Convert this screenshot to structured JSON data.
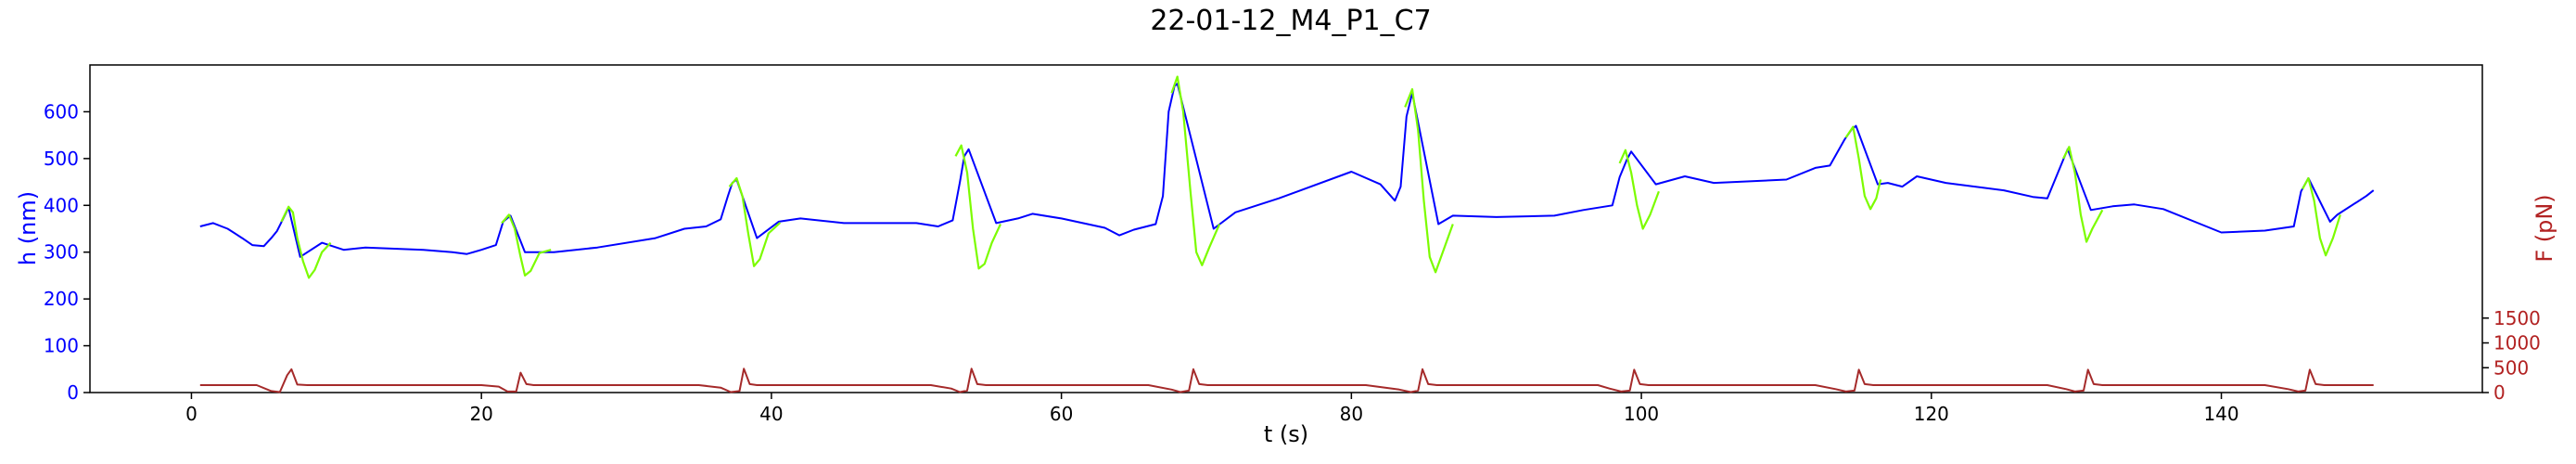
{
  "chart_data": {
    "type": "line",
    "title": "22-01-12_M4_P1_C7",
    "xlabel": "t (s)",
    "ylabel_left": "h (nm)",
    "ylabel_right": "F (pN)",
    "xlim": [
      -7,
      158
    ],
    "ylim_left": [
      0,
      700
    ],
    "ylim_right": [
      0,
      6600
    ],
    "x_ticks": [
      0,
      20,
      40,
      60,
      80,
      100,
      120,
      140
    ],
    "y_ticks_left": [
      0,
      100,
      200,
      300,
      400,
      500,
      600
    ],
    "y_ticks_right": [
      0,
      500,
      1000,
      1500
    ],
    "grid": false,
    "colors": {
      "left_axis": "#0000ff",
      "right_axis": "#b22222",
      "height_series": "#0000ff",
      "indentation_segments": "#7cfc00",
      "force_series": "#a52a2a"
    },
    "series": [
      {
        "axis": "left",
        "color": "#0000ff",
        "points": [
          [
            0.6,
            355
          ],
          [
            1.5,
            362
          ],
          [
            2.5,
            350
          ],
          [
            3.5,
            330
          ],
          [
            4.2,
            315
          ],
          [
            5.0,
            313
          ],
          [
            5.5,
            330
          ],
          [
            5.9,
            345
          ],
          [
            6.3,
            370
          ],
          [
            6.7,
            395
          ],
          [
            7.5,
            290
          ],
          [
            9.0,
            320
          ],
          [
            10.5,
            305
          ],
          [
            12,
            310
          ],
          [
            16,
            305
          ],
          [
            18,
            300
          ],
          [
            19,
            296
          ],
          [
            20,
            305
          ],
          [
            21,
            315
          ],
          [
            21.5,
            365
          ],
          [
            22,
            378
          ],
          [
            23,
            300
          ],
          [
            25,
            300
          ],
          [
            28,
            310
          ],
          [
            32,
            330
          ],
          [
            34,
            350
          ],
          [
            35.5,
            355
          ],
          [
            36.5,
            370
          ],
          [
            37,
            420
          ],
          [
            37.3,
            448
          ],
          [
            37.6,
            455
          ],
          [
            39,
            330
          ],
          [
            40.5,
            365
          ],
          [
            42,
            372
          ],
          [
            45,
            362
          ],
          [
            50,
            362
          ],
          [
            51.5,
            355
          ],
          [
            52.5,
            368
          ],
          [
            53,
            450
          ],
          [
            53.3,
            505
          ],
          [
            53.6,
            520
          ],
          [
            55.5,
            362
          ],
          [
            57,
            372
          ],
          [
            58,
            382
          ],
          [
            60,
            372
          ],
          [
            63,
            352
          ],
          [
            64,
            336
          ],
          [
            65,
            348
          ],
          [
            66.5,
            360
          ],
          [
            67,
            420
          ],
          [
            67.4,
            600
          ],
          [
            67.8,
            655
          ],
          [
            68,
            660
          ],
          [
            70.5,
            350
          ],
          [
            72,
            385
          ],
          [
            75,
            415
          ],
          [
            80,
            472
          ],
          [
            82,
            445
          ],
          [
            83,
            410
          ],
          [
            83.4,
            440
          ],
          [
            83.8,
            590
          ],
          [
            84.2,
            640
          ],
          [
            86,
            360
          ],
          [
            87,
            378
          ],
          [
            90,
            375
          ],
          [
            94,
            378
          ],
          [
            96,
            390
          ],
          [
            98,
            400
          ],
          [
            98.5,
            460
          ],
          [
            99,
            498
          ],
          [
            99.3,
            515
          ],
          [
            101,
            445
          ],
          [
            103,
            462
          ],
          [
            105,
            448
          ],
          [
            110,
            455
          ],
          [
            112,
            480
          ],
          [
            113,
            485
          ],
          [
            114,
            540
          ],
          [
            114.5,
            562
          ],
          [
            114.8,
            570
          ],
          [
            116.3,
            445
          ],
          [
            117,
            448
          ],
          [
            118,
            440
          ],
          [
            119,
            462
          ],
          [
            121,
            448
          ],
          [
            125,
            432
          ],
          [
            127,
            418
          ],
          [
            128,
            415
          ],
          [
            129,
            490
          ],
          [
            129.4,
            520
          ],
          [
            131,
            390
          ],
          [
            132.5,
            398
          ],
          [
            134,
            402
          ],
          [
            136,
            392
          ],
          [
            140,
            342
          ],
          [
            143,
            346
          ],
          [
            145,
            355
          ],
          [
            145.5,
            430
          ],
          [
            146,
            458
          ],
          [
            147.5,
            365
          ],
          [
            148,
            380
          ],
          [
            150,
            420
          ],
          [
            150.5,
            432
          ]
        ]
      },
      {
        "axis": "left",
        "color": "#7cfc00",
        "segments": [
          [
            [
              6.2,
              365
            ],
            [
              6.7,
              397
            ],
            [
              7.0,
              385
            ],
            [
              7.3,
              330
            ],
            [
              7.7,
              280
            ],
            [
              8.1,
              245
            ],
            [
              8.5,
              262
            ],
            [
              9.0,
              300
            ],
            [
              9.6,
              320
            ]
          ],
          [
            [
              21.4,
              362
            ],
            [
              21.9,
              380
            ],
            [
              22.3,
              350
            ],
            [
              22.7,
              290
            ],
            [
              23.0,
              250
            ],
            [
              23.4,
              260
            ],
            [
              24.0,
              298
            ],
            [
              24.8,
              305
            ]
          ],
          [
            [
              37.1,
              440
            ],
            [
              37.6,
              458
            ],
            [
              38.0,
              420
            ],
            [
              38.4,
              340
            ],
            [
              38.8,
              270
            ],
            [
              39.2,
              285
            ],
            [
              39.8,
              340
            ],
            [
              40.6,
              363
            ]
          ],
          [
            [
              52.7,
              505
            ],
            [
              53.1,
              528
            ],
            [
              53.5,
              470
            ],
            [
              53.9,
              350
            ],
            [
              54.3,
              265
            ],
            [
              54.7,
              275
            ],
            [
              55.2,
              320
            ],
            [
              55.8,
              360
            ]
          ],
          [
            [
              67.6,
              640
            ],
            [
              68.0,
              675
            ],
            [
              68.4,
              600
            ],
            [
              68.9,
              430
            ],
            [
              69.3,
              300
            ],
            [
              69.7,
              272
            ],
            [
              70.2,
              310
            ],
            [
              70.9,
              360
            ]
          ],
          [
            [
              83.7,
              610
            ],
            [
              84.2,
              648
            ],
            [
              84.6,
              560
            ],
            [
              85.0,
              410
            ],
            [
              85.4,
              290
            ],
            [
              85.8,
              257
            ],
            [
              86.3,
              300
            ],
            [
              87.0,
              360
            ]
          ],
          [
            [
              98.5,
              490
            ],
            [
              98.9,
              518
            ],
            [
              99.3,
              470
            ],
            [
              99.7,
              400
            ],
            [
              100.1,
              350
            ],
            [
              100.6,
              380
            ],
            [
              101.2,
              430
            ]
          ],
          [
            [
              114.1,
              545
            ],
            [
              114.6,
              568
            ],
            [
              115.0,
              500
            ],
            [
              115.4,
              420
            ],
            [
              115.8,
              392
            ],
            [
              116.2,
              415
            ],
            [
              116.5,
              455
            ]
          ],
          [
            [
              129.1,
              500
            ],
            [
              129.5,
              525
            ],
            [
              129.9,
              470
            ],
            [
              130.3,
              380
            ],
            [
              130.7,
              322
            ],
            [
              131.1,
              350
            ],
            [
              131.8,
              390
            ]
          ],
          [
            [
              145.6,
              435
            ],
            [
              146.0,
              458
            ],
            [
              146.4,
              410
            ],
            [
              146.8,
              330
            ],
            [
              147.2,
              293
            ],
            [
              147.7,
              330
            ],
            [
              148.2,
              380
            ]
          ]
        ]
      },
      {
        "axis": "right",
        "color": "#a52a2a",
        "points": [
          [
            0.6,
            150
          ],
          [
            3.5,
            150
          ],
          [
            4.5,
            150
          ],
          [
            5.5,
            30
          ],
          [
            6.1,
            10
          ],
          [
            6.6,
            350
          ],
          [
            6.9,
            470
          ],
          [
            7.3,
            160
          ],
          [
            8.0,
            150
          ],
          [
            20,
            150
          ],
          [
            21.2,
            120
          ],
          [
            21.8,
            20
          ],
          [
            22.4,
            20
          ],
          [
            22.7,
            400
          ],
          [
            23.1,
            170
          ],
          [
            23.6,
            150
          ],
          [
            35,
            150
          ],
          [
            36.5,
            100
          ],
          [
            37.2,
            10
          ],
          [
            37.8,
            30
          ],
          [
            38.1,
            480
          ],
          [
            38.5,
            170
          ],
          [
            39.0,
            150
          ],
          [
            51,
            150
          ],
          [
            52.4,
            80
          ],
          [
            53.0,
            10
          ],
          [
            53.5,
            40
          ],
          [
            53.8,
            480
          ],
          [
            54.2,
            170
          ],
          [
            54.8,
            150
          ],
          [
            66,
            150
          ],
          [
            67.6,
            60
          ],
          [
            68.2,
            10
          ],
          [
            68.8,
            40
          ],
          [
            69.1,
            470
          ],
          [
            69.5,
            170
          ],
          [
            70.1,
            150
          ],
          [
            81,
            150
          ],
          [
            83.3,
            60
          ],
          [
            84.1,
            10
          ],
          [
            84.6,
            40
          ],
          [
            84.9,
            470
          ],
          [
            85.3,
            170
          ],
          [
            85.9,
            150
          ],
          [
            97,
            150
          ],
          [
            97.8,
            80
          ],
          [
            98.6,
            20
          ],
          [
            99.2,
            40
          ],
          [
            99.5,
            460
          ],
          [
            99.9,
            170
          ],
          [
            100.5,
            150
          ],
          [
            112,
            150
          ],
          [
            113.4,
            70
          ],
          [
            114.1,
            20
          ],
          [
            114.7,
            40
          ],
          [
            115.0,
            460
          ],
          [
            115.4,
            170
          ],
          [
            116.0,
            150
          ],
          [
            128,
            150
          ],
          [
            129.3,
            70
          ],
          [
            129.9,
            20
          ],
          [
            130.5,
            40
          ],
          [
            130.8,
            460
          ],
          [
            131.2,
            170
          ],
          [
            131.8,
            150
          ],
          [
            143,
            150
          ],
          [
            144.6,
            70
          ],
          [
            145.3,
            20
          ],
          [
            145.8,
            40
          ],
          [
            146.1,
            460
          ],
          [
            146.5,
            170
          ],
          [
            147.1,
            150
          ],
          [
            150.5,
            150
          ]
        ]
      }
    ]
  }
}
